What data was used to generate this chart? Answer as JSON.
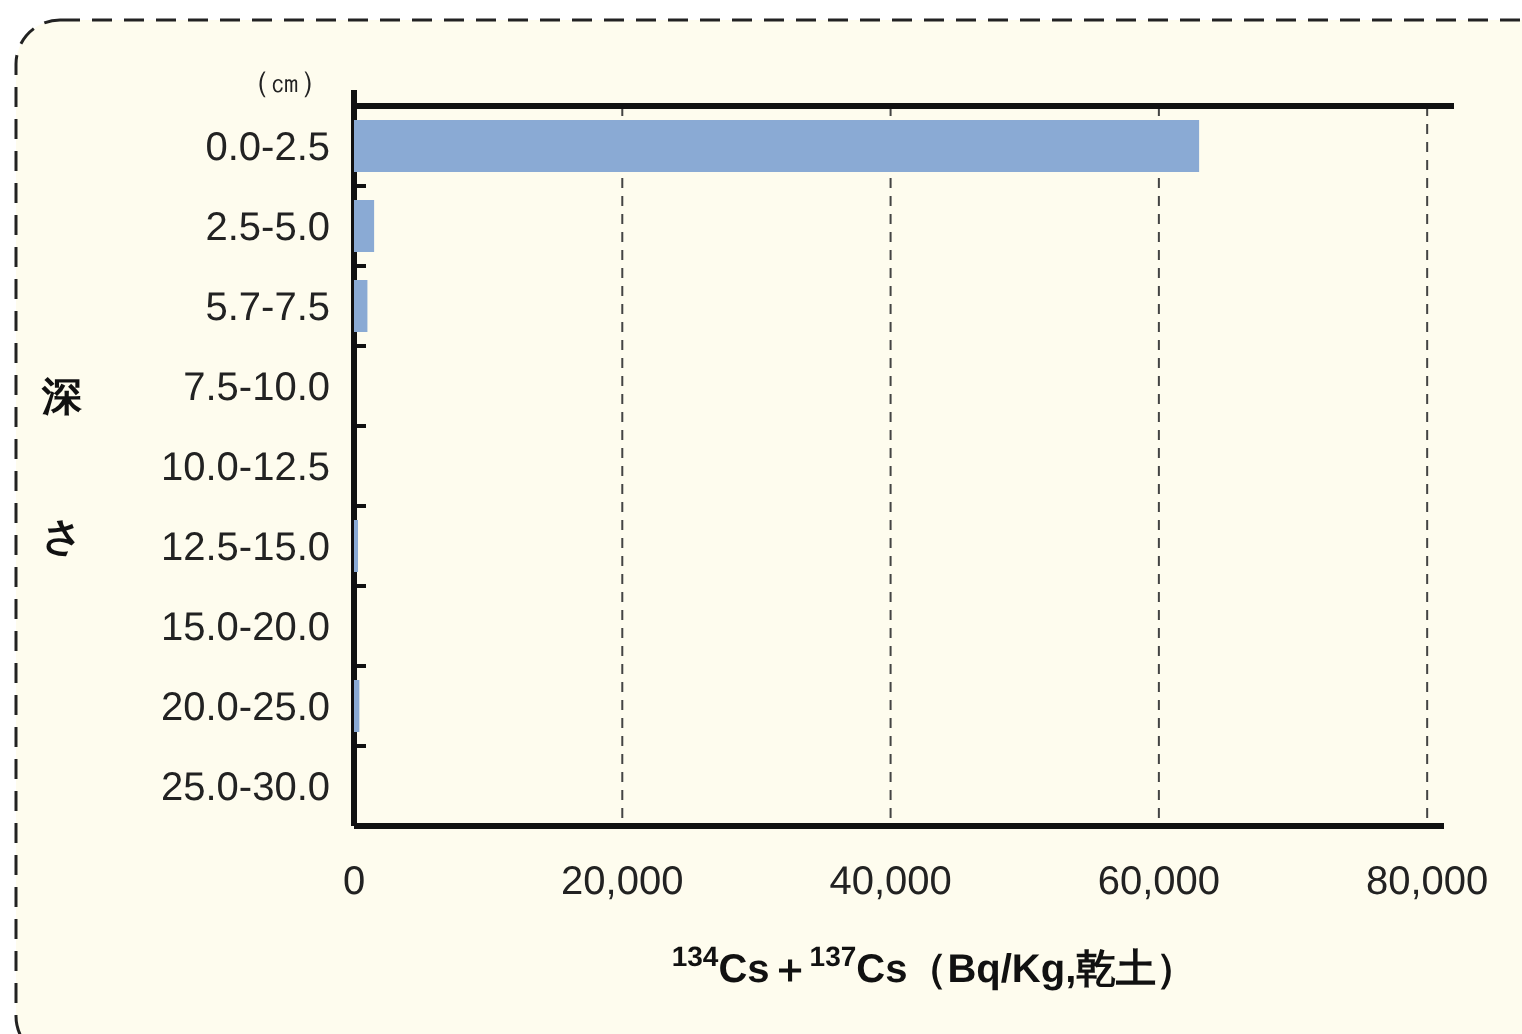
{
  "chart_data": {
    "type": "bar",
    "orientation": "horizontal",
    "categories": [
      "0.0-2.5",
      "2.5-5.0",
      "5.7-7.5",
      "7.5-10.0",
      "10.0-12.5",
      "12.5-15.0",
      "15.0-20.0",
      "20.0-25.0",
      "25.0-30.0"
    ],
    "values": [
      63000,
      1500,
      1000,
      0,
      0,
      300,
      0,
      400,
      0
    ],
    "color": "#8aaad4",
    "xlim": [
      0,
      82000
    ],
    "xticks": [
      0,
      {
        "value": 20000,
        "label": "20,000"
      },
      {
        "value": 40000,
        "label": "40,000"
      },
      {
        "value": 60000,
        "label": "60,000"
      },
      {
        "value": 80000,
        "label": "80,000"
      }
    ],
    "grid": "x",
    "xlabel": "$^{134}$Cs＋$^{137}$Cs（Bq/Kg,乾土）",
    "ylabel": "深さ",
    "annotations": [
      "（㎝）"
    ]
  }
}
